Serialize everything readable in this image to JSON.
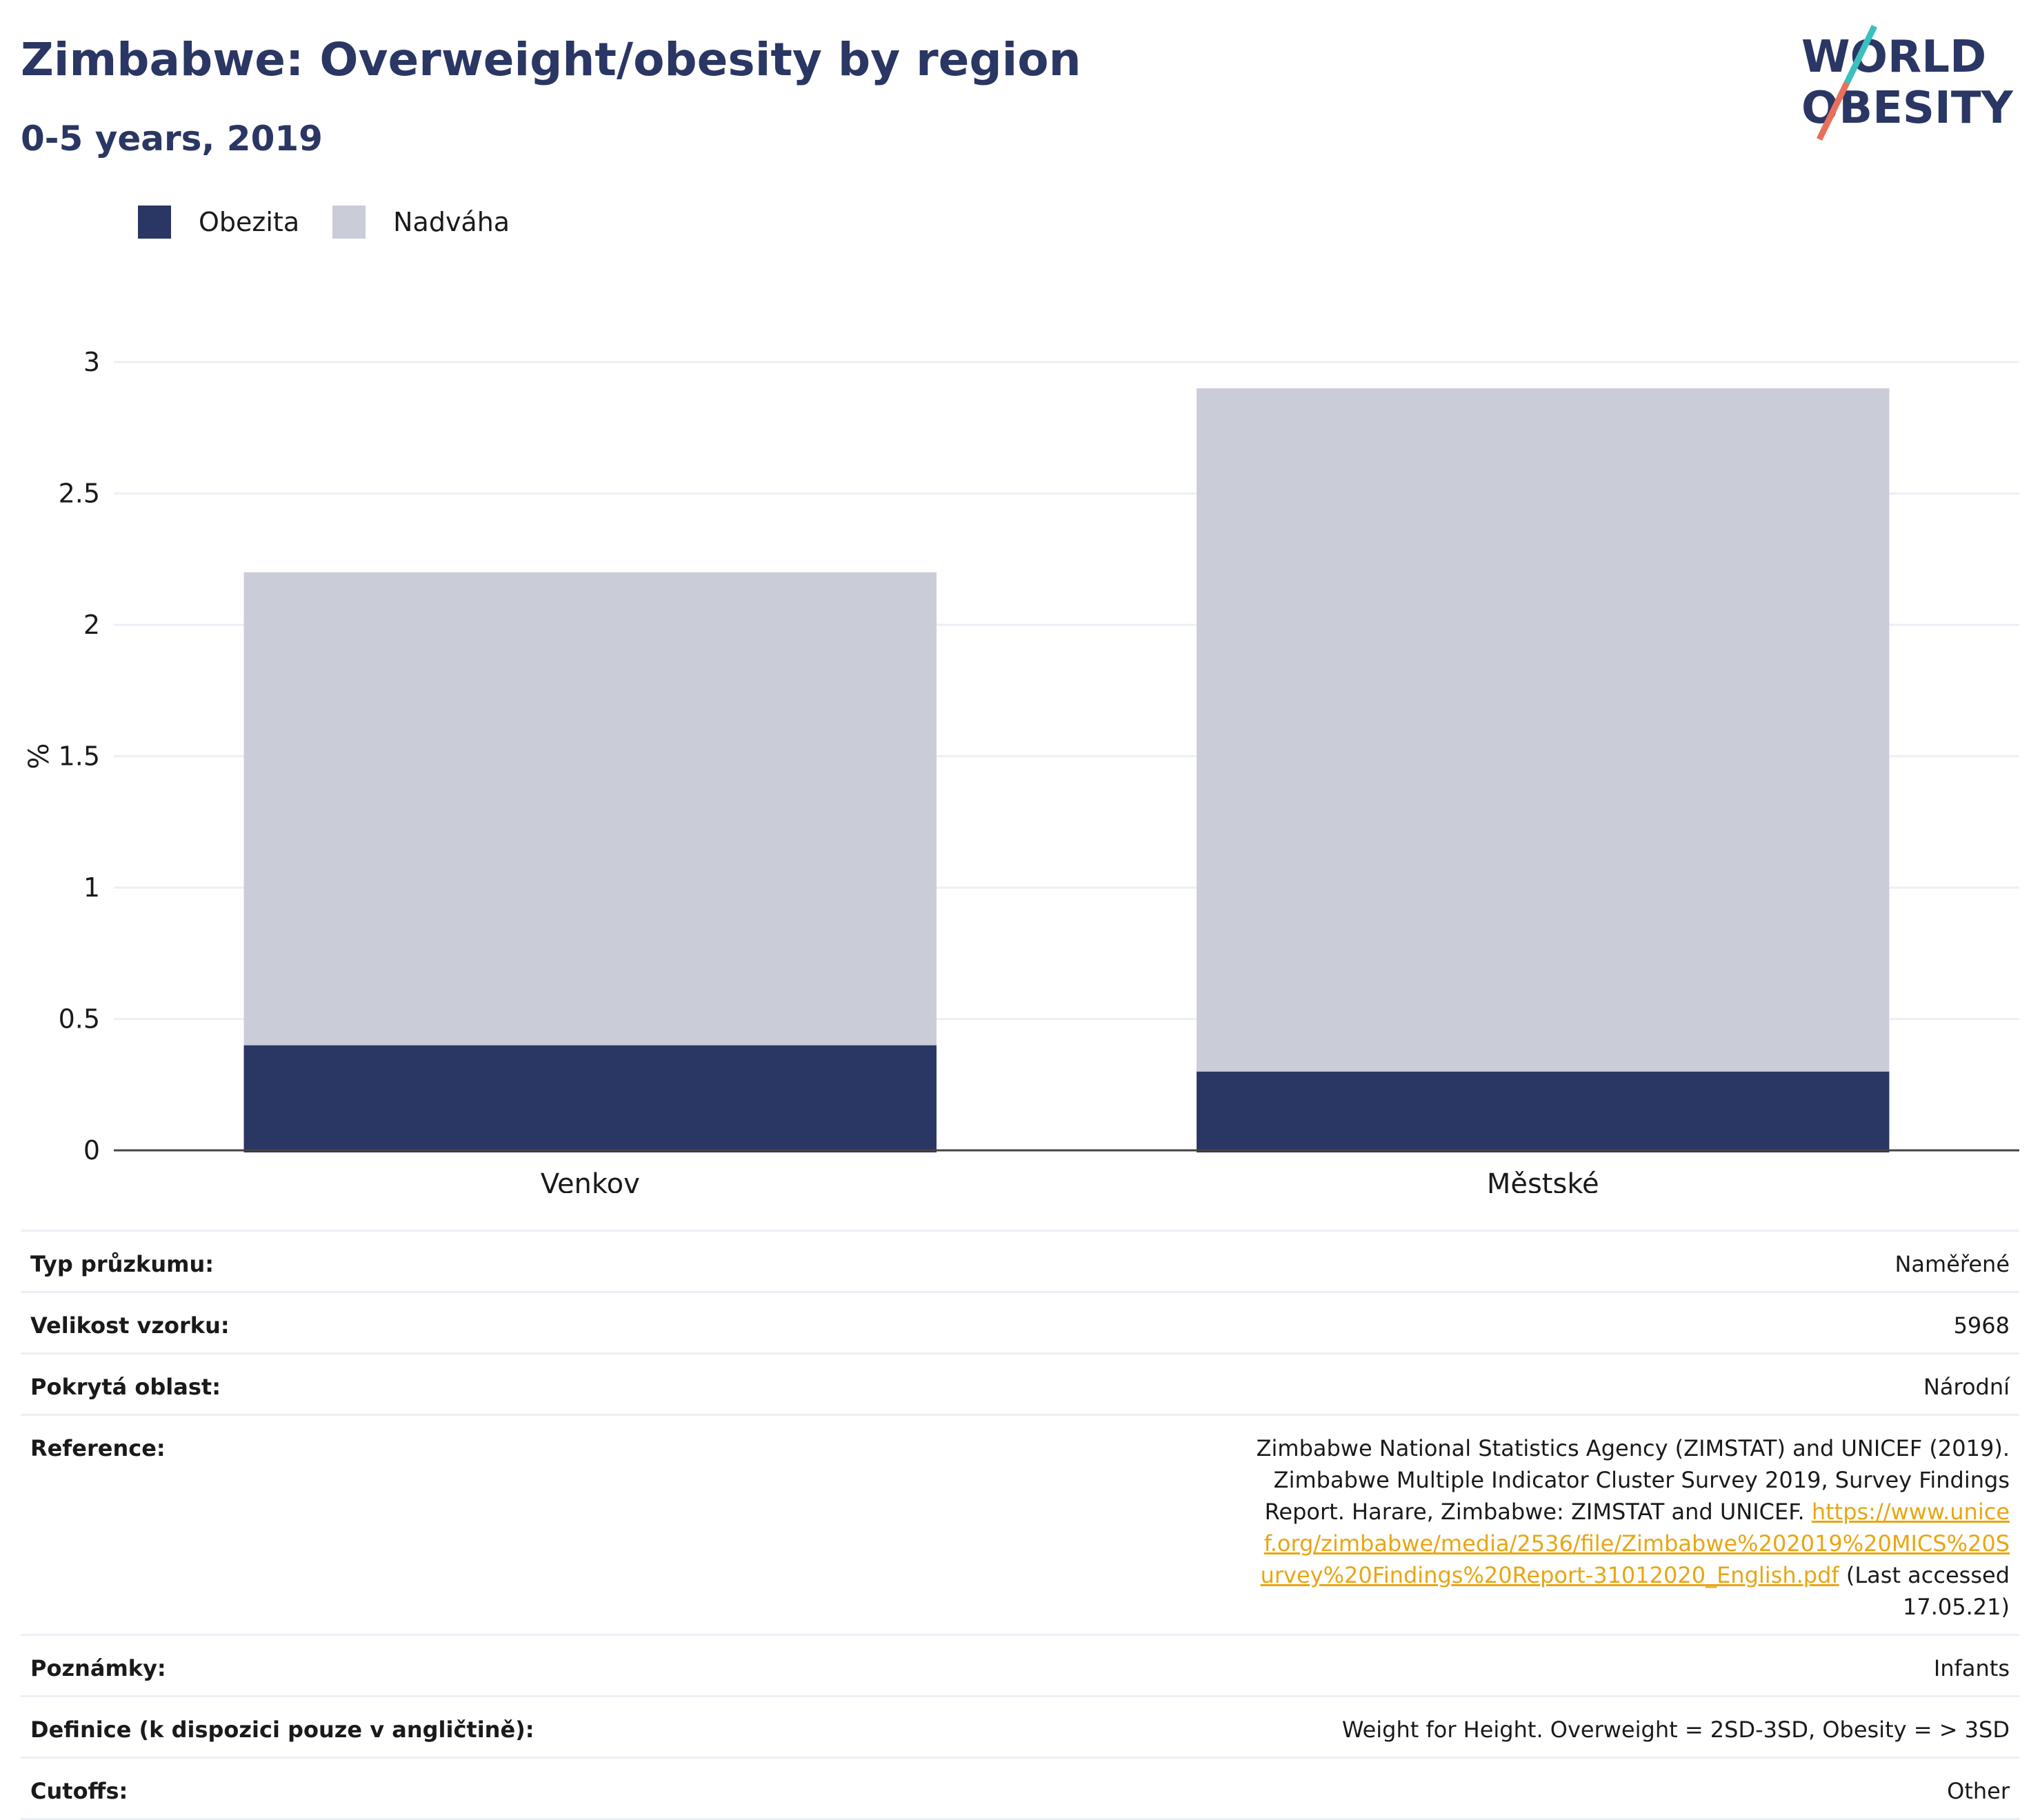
{
  "header": {
    "title": "Zimbabwe: Overweight/obesity by region",
    "subtitle": "0-5 years, 2019"
  },
  "logo": {
    "line1": "WORLD",
    "line2": "OBESITY"
  },
  "legend": [
    {
      "label": "Obezita",
      "color": "#2a3663"
    },
    {
      "label": "Nadváha",
      "color": "#cacdd8"
    }
  ],
  "chart_data": {
    "type": "bar",
    "stacked": true,
    "categories": [
      "Venkov",
      "Městské"
    ],
    "series": [
      {
        "name": "Obezita",
        "values": [
          0.4,
          0.3
        ],
        "color": "#2a3663"
      },
      {
        "name": "Nadváha",
        "values": [
          1.8,
          2.6
        ],
        "color": "#cacdd8"
      }
    ],
    "ylabel": "%",
    "ylim": [
      0,
      3
    ],
    "yticks": [
      "0",
      "0.5",
      "1",
      "1.5",
      "2",
      "2.5",
      "3"
    ],
    "grid": true,
    "legend_position": "top-left"
  },
  "meta": {
    "survey_type": {
      "label": "Typ průzkumu:",
      "value": "Naměřené"
    },
    "sample_size": {
      "label": "Velikost vzorku:",
      "value": "5968"
    },
    "area_covered": {
      "label": "Pokrytá oblast:",
      "value": "Národní"
    },
    "reference": {
      "label": "Reference:",
      "text": "Zimbabwe National Statistics Agency (ZIMSTAT) and UNICEF (2019). Zimbabwe Multiple Indicator Cluster Survey 2019, Survey Findings Report. Harare, Zimbabwe: ZIMSTAT and UNICEF.",
      "link": "https://www.unicef.org/zimbabwe/media/2536/file/Zimbabwe%202019%20MICS%20Survey%20Findings%20Report-31012020_English.pdf",
      "accessed": "(Last accessed 17.05.21)"
    },
    "notes": {
      "label": "Poznámky:",
      "value": "Infants"
    },
    "definition": {
      "label": "Definice (k dispozici pouze v angličtině):",
      "value": "Weight for Height. Overweight = 2SD-3SD, Obesity = > 3SD"
    },
    "cutoffs": {
      "label": "Cutoffs:",
      "value": "Other"
    }
  }
}
